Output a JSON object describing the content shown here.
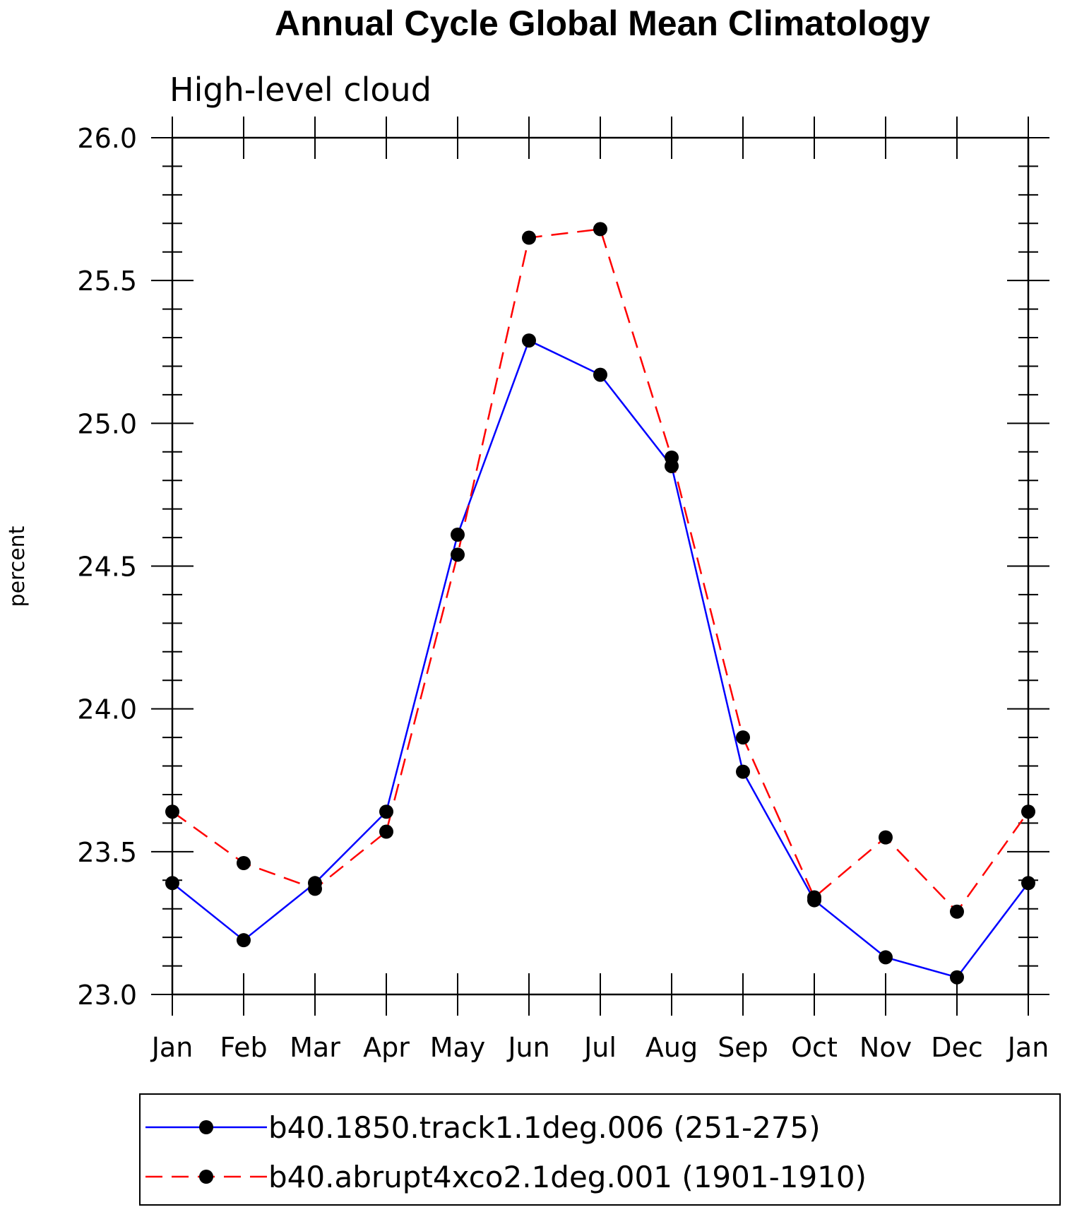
{
  "chart_data": {
    "type": "line",
    "title": "Annual Cycle Global Mean Climatology",
    "subtitle": "High-level cloud",
    "xlabel": "",
    "ylabel": "percent",
    "categories": [
      "Jan",
      "Feb",
      "Mar",
      "Apr",
      "May",
      "Jun",
      "Jul",
      "Aug",
      "Sep",
      "Oct",
      "Nov",
      "Dec",
      "Jan"
    ],
    "ylim": [
      23.0,
      26.0
    ],
    "yticks": [
      "23.0",
      "23.5",
      "24.0",
      "24.5",
      "25.0",
      "25.5",
      "26.0"
    ],
    "grid": false,
    "legend_position": "bottom",
    "series": [
      {
        "name": "b40.1850.track1.1deg.006 (251-275)",
        "color": "#0000ff",
        "line_style": "solid",
        "values": [
          23.39,
          23.19,
          23.39,
          23.64,
          24.61,
          25.29,
          25.17,
          24.85,
          23.78,
          23.33,
          23.13,
          23.06,
          23.39
        ]
      },
      {
        "name": "b40.abrupt4xco2.1deg.001 (1901-1910)",
        "color": "#ff0000",
        "line_style": "dashed",
        "values": [
          23.64,
          23.46,
          23.37,
          23.57,
          24.54,
          25.65,
          25.68,
          24.88,
          23.9,
          23.34,
          23.55,
          23.29,
          23.64
        ]
      }
    ]
  }
}
